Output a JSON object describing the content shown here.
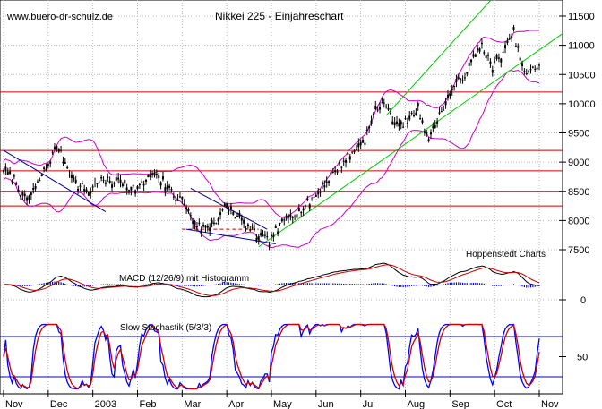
{
  "header": {
    "watermark": "www.buero-dr-schulz.de",
    "title": "Nikkei 225 - Einjahreschart",
    "source": "Hoppenstedt Charts"
  },
  "chart_data": [
    {
      "type": "candlestick",
      "title": "Nikkei 225 - Einjahreschart",
      "y_ticks": [
        7500,
        8000,
        8500,
        9000,
        9500,
        10000,
        10500,
        11000,
        11500
      ],
      "ylim": [
        7300,
        11600
      ],
      "x_ticks": [
        "Nov",
        "Dec",
        "2003",
        "Feb",
        "Mar",
        "Apr",
        "May",
        "Jun",
        "Jul",
        "Aug",
        "Sep",
        "Oct",
        "Nov"
      ],
      "horizontal_levels": [
        10200,
        9200,
        8850,
        8500,
        8250
      ],
      "dashed_level": 7850,
      "close_series": {
        "t": [
          0,
          5,
          10,
          15,
          20,
          25,
          30,
          35,
          40,
          45,
          50,
          55,
          60,
          65,
          70,
          75,
          80,
          85,
          90,
          95,
          100,
          105,
          110,
          115,
          120,
          125,
          130,
          135,
          140,
          145,
          150,
          155,
          160,
          165,
          170,
          175,
          180,
          185,
          190,
          195,
          200,
          205,
          210,
          215,
          220,
          225,
          230,
          235,
          240,
          245,
          250,
          252
        ],
        "close": [
          8900,
          8700,
          8350,
          8550,
          8900,
          9300,
          8900,
          8600,
          8500,
          8700,
          8650,
          8700,
          8550,
          8600,
          8800,
          8650,
          8450,
          8300,
          7950,
          7850,
          8000,
          8250,
          8050,
          7900,
          7700,
          7650,
          7900,
          8100,
          8200,
          8350,
          8600,
          8800,
          9000,
          9200,
          9400,
          9900,
          10000,
          9600,
          9700,
          9900,
          9400,
          9800,
          10200,
          10400,
          10700,
          11000,
          10600,
          10900,
          11200,
          10500,
          10600,
          10700
        ]
      }
    },
    {
      "type": "line",
      "title": "MACD (12/26/9) mit Histogramm",
      "y_ticks": [
        0
      ]
    },
    {
      "type": "line",
      "title": "Slow Stochastik (5/3/3)",
      "y_ticks": [
        50
      ],
      "levels": [
        80,
        20
      ]
    }
  ],
  "colors": {
    "price": "#000000",
    "bollinger": "#cc00cc",
    "trend": "#00cc00",
    "support": "#cc0000",
    "channel": "#000099",
    "macd_hist": "#0000cc",
    "stoch_k": "#0000ff",
    "stoch_d": "#cc0000",
    "grid": "#bbbbbb"
  }
}
